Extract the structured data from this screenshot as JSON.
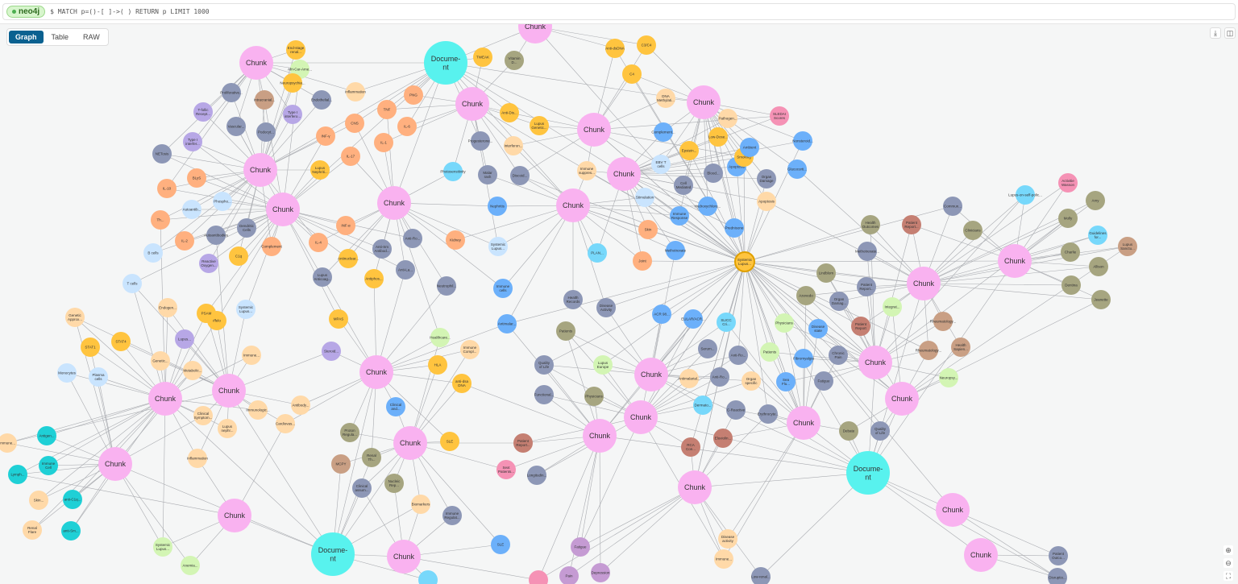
{
  "header": {
    "db_name": "neo4j",
    "query": "$ MATCH p=()-[ ]->( ) RETURN p LIMIT 1000"
  },
  "view_tabs": [
    {
      "label": "Graph",
      "active": true
    },
    {
      "label": "Table",
      "active": false
    },
    {
      "label": "RAW",
      "active": false
    }
  ],
  "toolbar_icons": [
    "download-icon",
    "fullscreen-icon"
  ],
  "zoom_icons": [
    "zoom-in-icon",
    "zoom-out-icon",
    "fit-to-screen-icon"
  ],
  "palette": {
    "K": "#f9b2f0",
    "D": "#58f2ee",
    "O": "#ffc43f",
    "P": "#ffb07f",
    "L": "#ffd9a8",
    "S": "#8d97b6",
    "U": "#b7a7e6",
    "B": "#6cb0fa",
    "C": "#c9e4fe",
    "G": "#d3f5b4",
    "V": "#a6a580",
    "W": "#c99f84",
    "R": "#c57f72",
    "N": "#f592b5",
    "T": "#1fd0d6",
    "Y": "#77d8fb",
    "M": "#c59bd3"
  },
  "nodes": [
    {
      "label": "Chunk",
      "color": "K"
    },
    {
      "label": "Chunk",
      "color": "K"
    },
    {
      "label": "Chunk",
      "color": "K"
    },
    {
      "label": "Chunk",
      "color": "K"
    },
    {
      "label": "Chunk",
      "color": "K"
    },
    {
      "label": "Chunk",
      "color": "K"
    },
    {
      "label": "Chunk",
      "color": "K"
    },
    {
      "label": "Chunk",
      "color": "K"
    },
    {
      "label": "Chunk",
      "color": "K"
    },
    {
      "label": "Chunk",
      "color": "K"
    },
    {
      "label": "Chunk",
      "color": "K"
    },
    {
      "label": "Chunk",
      "color": "K"
    },
    {
      "label": "Chunk",
      "color": "K"
    },
    {
      "label": "Chunk",
      "color": "K"
    },
    {
      "label": "Chunk",
      "color": "K"
    },
    {
      "label": "Chunk",
      "color": "K"
    },
    {
      "label": "Chunk",
      "color": "K"
    },
    {
      "label": "Chunk",
      "color": "K"
    },
    {
      "label": "Chunk",
      "color": "K"
    },
    {
      "label": "Chunk",
      "color": "K"
    },
    {
      "label": "Chunk",
      "color": "K"
    },
    {
      "label": "Chunk",
      "color": "K"
    },
    {
      "label": "Chunk",
      "color": "K"
    },
    {
      "label": "Chunk",
      "color": "K"
    },
    {
      "label": "Chunk",
      "color": "K"
    },
    {
      "label": "Chunk",
      "color": "K"
    },
    {
      "label": "Chunk",
      "color": "K"
    },
    {
      "label": "Chunk",
      "color": "K"
    },
    {
      "label": "Document",
      "color": "D"
    },
    {
      "label": "Document",
      "color": "D"
    },
    {
      "label": "Document",
      "color": "D"
    },
    {
      "label": "Systemic Lupus...",
      "color": "O"
    },
    {
      "label": "End-stage renal...",
      "color": "O"
    },
    {
      "label": "Afri-Car-Ame...",
      "color": "G"
    },
    {
      "label": "Neuropsychia...",
      "color": "O"
    },
    {
      "label": "Proliferative...",
      "color": "S"
    },
    {
      "label": "Intracranial...",
      "color": "W"
    },
    {
      "label": "Endothelial...",
      "color": "S"
    },
    {
      "label": "Inflammation",
      "color": "L"
    },
    {
      "label": "TNF",
      "color": "P"
    },
    {
      "label": "PNG",
      "color": "P"
    },
    {
      "label": "T-follic Recept...",
      "color": "U"
    },
    {
      "label": "Vascular...",
      "color": "S"
    },
    {
      "label": "Podocyt...",
      "color": "S"
    },
    {
      "label": "Type I interfero...",
      "color": "U"
    },
    {
      "label": "CNS",
      "color": "P"
    },
    {
      "label": "IL-6",
      "color": "P"
    },
    {
      "label": "INF-γ",
      "color": "P"
    },
    {
      "label": "Type I interfer...",
      "color": "U"
    },
    {
      "label": "IL-1",
      "color": "P"
    },
    {
      "label": "IL-17",
      "color": "P"
    },
    {
      "label": "NETosis",
      "color": "S"
    },
    {
      "label": "Lupus Nephriti...",
      "color": "O"
    },
    {
      "label": "BLyS",
      "color": "P"
    },
    {
      "label": "IL-10",
      "color": "P"
    },
    {
      "label": "Autoantib...",
      "color": "C"
    },
    {
      "label": "Phospho...",
      "color": "C"
    },
    {
      "label": "Autoantibodies",
      "color": "S"
    },
    {
      "label": "Dendritic Cells",
      "color": "S"
    },
    {
      "label": "Complement",
      "color": "P"
    },
    {
      "label": "Th...",
      "color": "P"
    },
    {
      "label": "IL-2",
      "color": "P"
    },
    {
      "label": "B cells",
      "color": "C"
    },
    {
      "label": "T cells",
      "color": "C"
    },
    {
      "label": "Reactive Oxygen...",
      "color": "U"
    },
    {
      "label": "C1q",
      "color": "O"
    },
    {
      "label": "IL-4",
      "color": "P"
    },
    {
      "label": "INF-α",
      "color": "P"
    },
    {
      "label": "Antinuclear...",
      "color": "O"
    },
    {
      "label": "Lupus Anticoag...",
      "color": "S"
    },
    {
      "label": "Anti-Sm Antibod...",
      "color": "S"
    },
    {
      "label": "Anti-Ro...",
      "color": "S"
    },
    {
      "label": "Anti-La...",
      "color": "S"
    },
    {
      "label": "Antiphos...",
      "color": "O"
    },
    {
      "label": "Kidney",
      "color": "P"
    },
    {
      "label": "Systemic Lupus...",
      "color": "C"
    },
    {
      "label": "TWEAK",
      "color": "O"
    },
    {
      "label": "Vitamin D...",
      "color": "V"
    },
    {
      "label": "Anti-Dis...",
      "color": "O"
    },
    {
      "label": "Lupus Genetic...",
      "color": "O"
    },
    {
      "label": "Progesterone...",
      "color": "S"
    },
    {
      "label": "Interferon...",
      "color": "L"
    },
    {
      "label": "Photosensitivity",
      "color": "Y"
    },
    {
      "label": "Malar rash",
      "color": "S"
    },
    {
      "label": "Discoid...",
      "color": "S"
    },
    {
      "label": "Nephritis",
      "color": "B"
    },
    {
      "label": "Anti-dsDNA",
      "color": "O"
    },
    {
      "label": "C3/C4",
      "color": "O"
    },
    {
      "label": "C4",
      "color": "O"
    },
    {
      "label": "DNA Methylati...",
      "color": "L"
    },
    {
      "label": "Immune suppres...",
      "color": "L"
    },
    {
      "label": "Complement...",
      "color": "B"
    },
    {
      "label": "Epstein...",
      "color": "O"
    },
    {
      "label": "EBV T cells",
      "color": "C"
    },
    {
      "label": "Stimulation",
      "color": "C"
    },
    {
      "label": "Cell Mediated",
      "color": "S"
    },
    {
      "label": "Immune Response",
      "color": "B"
    },
    {
      "label": "Blood...",
      "color": "S"
    },
    {
      "label": "Apoptosis",
      "color": "B"
    },
    {
      "label": "Hydroxychloro...",
      "color": "B"
    },
    {
      "label": "Low-Dose...",
      "color": "O"
    },
    {
      "label": "Pathogen...",
      "color": "L"
    },
    {
      "label": "Smoking",
      "color": "O"
    },
    {
      "label": "Ambient",
      "color": "B"
    },
    {
      "label": "Organ Damage",
      "color": "S"
    },
    {
      "label": "SLEDAI Scores",
      "color": "N"
    },
    {
      "label": "Nonsteroid...",
      "color": "B"
    },
    {
      "label": "Glucocorti...",
      "color": "B"
    },
    {
      "label": "Apoptosis",
      "color": "L"
    },
    {
      "label": "Prednisone",
      "color": "B"
    },
    {
      "label": "Skin",
      "color": "P"
    },
    {
      "label": "Methotrexate",
      "color": "B"
    },
    {
      "label": "Joint",
      "color": "P"
    },
    {
      "label": "PLAN...",
      "color": "Y"
    },
    {
      "label": "Lindblom",
      "color": "V"
    },
    {
      "label": "Methotrexate...",
      "color": "S"
    },
    {
      "label": "Health Outcomes",
      "color": "V"
    },
    {
      "label": "Patient Report...",
      "color": "R"
    },
    {
      "label": "Commun...",
      "color": "S"
    },
    {
      "label": "Clinicians",
      "color": "V"
    },
    {
      "label": "Azevedo",
      "color": "V"
    },
    {
      "label": "Organ Damag...",
      "color": "S"
    },
    {
      "label": "Patient Report...",
      "color": "S"
    },
    {
      "label": "Integrat...",
      "color": "G"
    },
    {
      "label": "Patient Report",
      "color": "R"
    },
    {
      "label": "Rheumatology...",
      "color": "W"
    },
    {
      "label": "Rheumatology...",
      "color": "W"
    },
    {
      "label": "Health Sapien...",
      "color": "W"
    },
    {
      "label": "Physicians",
      "color": "G"
    },
    {
      "label": "Disease state",
      "color": "B"
    },
    {
      "label": "Patients",
      "color": "G"
    },
    {
      "label": "Fibromyalgia",
      "color": "B"
    },
    {
      "label": "Chronic Pain",
      "color": "S"
    },
    {
      "label": "Fatigue",
      "color": "S"
    },
    {
      "label": "Sea Flu...",
      "color": "B"
    },
    {
      "label": "Debate",
      "color": "V"
    },
    {
      "label": "Quality of Life",
      "color": "S"
    },
    {
      "label": "Neuropsy...",
      "color": "G"
    },
    {
      "label": "Lupus-on-self-polic...",
      "color": "Y"
    },
    {
      "label": "Activitie Wasson",
      "color": "N"
    },
    {
      "label": "Amy",
      "color": "V"
    },
    {
      "label": "Molly",
      "color": "V"
    },
    {
      "label": "Guidelines for...",
      "color": "Y"
    },
    {
      "label": "Charlie",
      "color": "V"
    },
    {
      "label": "Lupus Sanctu...",
      "color": "W"
    },
    {
      "label": "Allison",
      "color": "V"
    },
    {
      "label": "Dentina",
      "color": "V"
    },
    {
      "label": "Jeanette",
      "color": "V"
    },
    {
      "label": "Neutrophil...",
      "color": "S"
    },
    {
      "label": "Immune cells",
      "color": "B"
    },
    {
      "label": "Antimalar...",
      "color": "B"
    },
    {
      "label": "Health Records",
      "color": "S"
    },
    {
      "label": "Disease Activity",
      "color": "S"
    },
    {
      "label": "Patients",
      "color": "V"
    },
    {
      "label": "Lupus Europe",
      "color": "G"
    },
    {
      "label": "Physicians",
      "color": "V"
    },
    {
      "label": "Quality of Life",
      "color": "S"
    },
    {
      "label": "Functional...",
      "color": "S"
    },
    {
      "label": "ACR 98...",
      "color": "B"
    },
    {
      "label": "EULAR/ACR...",
      "color": "B"
    },
    {
      "label": "SLICC Cri...",
      "color": "Y"
    },
    {
      "label": "Serum...",
      "color": "S"
    },
    {
      "label": "Anti-Ro...",
      "color": "S"
    },
    {
      "label": "Antimalarial...",
      "color": "L"
    },
    {
      "label": "Anti-Ro...",
      "color": "S"
    },
    {
      "label": "Organ specific",
      "color": "L"
    },
    {
      "label": "Dermato...",
      "color": "Y"
    },
    {
      "label": "C-Reactive",
      "color": "S"
    },
    {
      "label": "Erythrocyte...",
      "color": "S"
    },
    {
      "label": "Eluviolin...",
      "color": "R"
    },
    {
      "label": "RCA Con...",
      "color": "R"
    },
    {
      "label": "Healthcare...",
      "color": "G"
    },
    {
      "label": "Immune Compl...",
      "color": "L"
    },
    {
      "label": "HLA",
      "color": "O"
    },
    {
      "label": "anti-dsa DNA",
      "color": "O"
    },
    {
      "label": "Clinical and...",
      "color": "B"
    },
    {
      "label": "SLE",
      "color": "O"
    },
    {
      "label": "Patient Report...",
      "color": "R"
    },
    {
      "label": "Sext Patients...",
      "color": "N"
    },
    {
      "label": "Longitudin...",
      "color": "S"
    },
    {
      "label": "Biomarkers",
      "color": "L"
    },
    {
      "label": "Immune Regulat...",
      "color": "S"
    },
    {
      "label": "Proton Regula...",
      "color": "V"
    },
    {
      "label": "Renal Th...",
      "color": "V"
    },
    {
      "label": "Nucleic Rep...",
      "color": "V"
    },
    {
      "label": "MCPY",
      "color": "W"
    },
    {
      "label": "Clinical assum...",
      "color": "S"
    },
    {
      "label": "MPAS",
      "color": "O"
    },
    {
      "label": "Steroid...",
      "color": "U"
    },
    {
      "label": "Cardiovas...",
      "color": "L"
    },
    {
      "label": "Immunologic...",
      "color": "L"
    },
    {
      "label": "Lupus nephr...",
      "color": "L"
    },
    {
      "label": "Clinical Symptom...",
      "color": "L"
    },
    {
      "label": "Antibody...",
      "color": "L"
    },
    {
      "label": "Immune...",
      "color": "L"
    },
    {
      "label": "Iffelo",
      "color": "O"
    },
    {
      "label": "Systemic Lupus...",
      "color": "C"
    },
    {
      "label": "Lupus...",
      "color": "U"
    },
    {
      "label": "PSAM",
      "color": "O"
    },
    {
      "label": "Endogen...",
      "color": "L"
    },
    {
      "label": "Genetic...",
      "color": "L"
    },
    {
      "label": "Metabolic...",
      "color": "L"
    },
    {
      "label": "STAT4",
      "color": "O"
    },
    {
      "label": "STAT1",
      "color": "O"
    },
    {
      "label": "Genetic Approx...",
      "color": "L"
    },
    {
      "label": "Monocytes",
      "color": "C"
    },
    {
      "label": "Plasma cells",
      "color": "C"
    },
    {
      "label": "Inflammation",
      "color": "L"
    },
    {
      "label": "Antigen...",
      "color": "T"
    },
    {
      "label": "Immune Cell",
      "color": "T"
    },
    {
      "label": "Lymph...",
      "color": "T"
    },
    {
      "label": "anti-C1q...",
      "color": "T"
    },
    {
      "label": "anti-Sm...",
      "color": "T"
    },
    {
      "label": "Immune...",
      "color": "L"
    },
    {
      "label": "Skin...",
      "color": "L"
    },
    {
      "label": "Renal Flare",
      "color": "L"
    },
    {
      "label": "Systemic Lupus...",
      "color": "G"
    },
    {
      "label": "Anemia...",
      "color": "G"
    },
    {
      "label": "SLE",
      "color": "B"
    },
    {
      "label": "Fatigue",
      "color": "M"
    },
    {
      "label": "Depression",
      "color": "M"
    },
    {
      "label": "Pain",
      "color": "M"
    },
    {
      "label": "",
      "color": "N"
    },
    {
      "label": "",
      "color": "Y"
    },
    {
      "label": "Disease activity",
      "color": "L"
    },
    {
      "label": "Immune...",
      "color": "L"
    },
    {
      "label": "Low-renal...",
      "color": "S"
    },
    {
      "label": "Patient Outco...",
      "color": "S"
    },
    {
      "label": "Disruptio...",
      "color": "S"
    }
  ]
}
